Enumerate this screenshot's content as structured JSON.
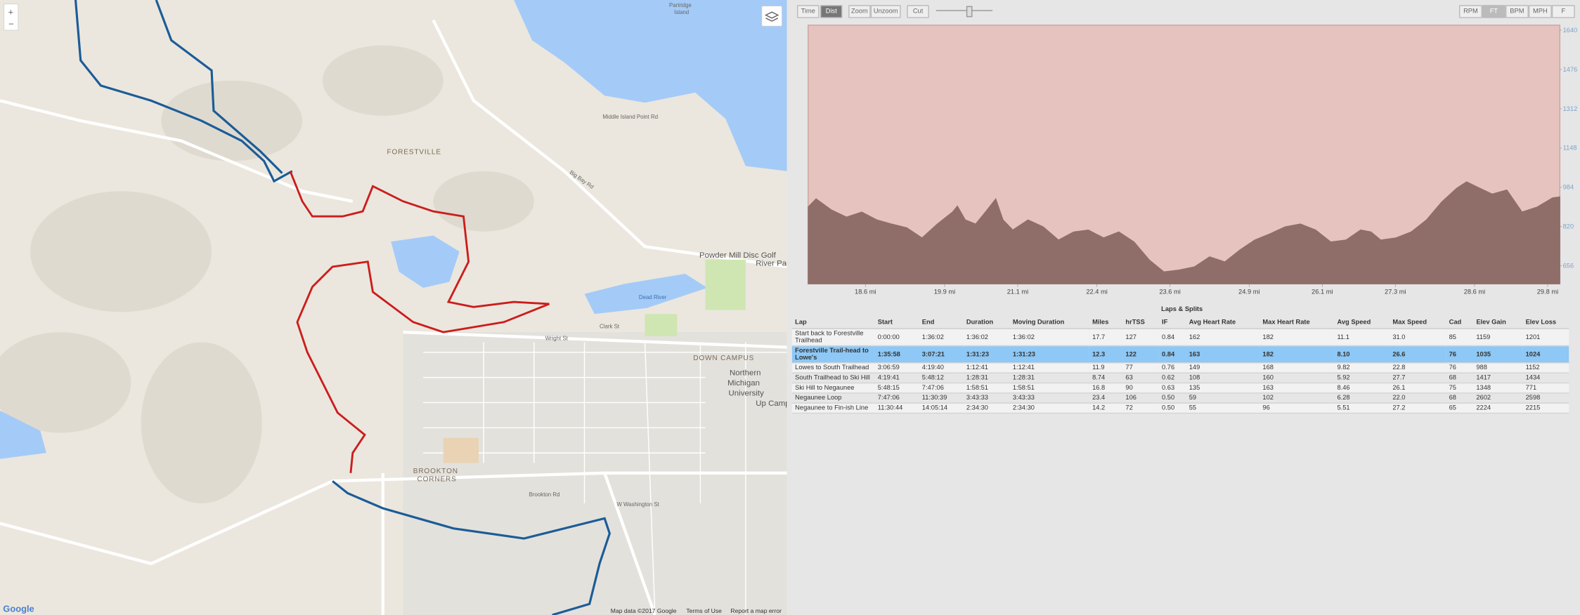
{
  "map": {
    "labels": [
      "Partridge",
      "Island",
      "FORESTVILLE",
      "Big Bay Rd",
      "Middle Island Point Rd",
      "Powder Mill Disc Golf",
      "River Park",
      "Dead River",
      "Clark St",
      "Wright St",
      "DOWN CAMPUS",
      "Northern",
      "Michigan",
      "University",
      "Up Campus",
      "BROOKTON",
      "CORNERS",
      "Brookton Rd",
      "W Washington St",
      "Map data ©2017 Google",
      "Terms of Use",
      "Report a map error",
      "Google"
    ]
  },
  "toolbar": {
    "left": [
      "Time",
      "Dist",
      "Zoom",
      "Unzoom",
      "Cut"
    ],
    "right": [
      "RPM",
      "FT",
      "BPM",
      "MPH",
      "F"
    ]
  },
  "chart_data": {
    "type": "area",
    "x": [
      17.66,
      17.79,
      18.04,
      18.29,
      18.54,
      18.79,
      19.03,
      19.28,
      19.53,
      19.78,
      20.03,
      20.11,
      20.24,
      20.41,
      20.57,
      20.74,
      20.86,
      21.02,
      21.27,
      21.52,
      21.77,
      22.02,
      22.26,
      22.51,
      22.76,
      23.01,
      23.26,
      23.5,
      23.75,
      24.0,
      24.25,
      24.5,
      24.75,
      24.99,
      25.24,
      25.49,
      25.74,
      25.99,
      26.24,
      26.49,
      26.73,
      26.9,
      27.06,
      27.31,
      27.56,
      27.81,
      28.06,
      28.31,
      28.47,
      28.64,
      28.89,
      29.13,
      29.38,
      29.63,
      29.88,
      30.0
    ],
    "series": [
      {
        "color": "#8f6e6a",
        "values": [
          902,
          936,
          890,
          860,
          881,
          848,
          831,
          815,
          773,
          831,
          881,
          906,
          848,
          831,
          881,
          936,
          848,
          806,
          848,
          819,
          764,
          798,
          806,
          773,
          798,
          756,
          681,
          631,
          639,
          652,
          694,
          673,
          723,
          764,
          790,
          819,
          831,
          806,
          756,
          764,
          806,
          798,
          764,
          773,
          798,
          848,
          923,
          981,
          1007,
          986,
          956,
          973,
          881,
          902,
          940,
          944
        ]
      }
    ],
    "xlim": [
      17.66,
      30.0
    ],
    "ylim": [
      581,
      1661
    ],
    "xticks": [
      {
        "value": 18.6,
        "label": "18.6 mi"
      },
      {
        "value": 19.9,
        "label": "19.9 mi"
      },
      {
        "value": 21.1,
        "label": "21.1 mi"
      },
      {
        "value": 22.4,
        "label": "22.4 mi"
      },
      {
        "value": 23.6,
        "label": "23.6 mi"
      },
      {
        "value": 24.9,
        "label": "24.9 mi"
      },
      {
        "value": 26.1,
        "label": "26.1 mi"
      },
      {
        "value": 27.3,
        "label": "27.3 mi"
      },
      {
        "value": 28.6,
        "label": "28.6 mi"
      },
      {
        "value": 29.8,
        "label": "29.8 mi"
      }
    ],
    "yticks": [
      656,
      820,
      984,
      1148,
      1312,
      1476,
      1640
    ]
  },
  "table": {
    "title": "Laps & Splits",
    "header": [
      "Lap",
      "Start",
      "End",
      "Duration",
      "Moving Duration",
      "Miles",
      "hrTSS",
      "IF",
      "Avg Heart Rate",
      "Max Heart Rate",
      "Avg Speed",
      "Max Speed",
      "Cad",
      "Elev Gain",
      "Elev Loss"
    ],
    "rows": [
      [
        "Start back to Forestville Trailhead",
        "0:00:00",
        "1:36:02",
        "1:36:02",
        "1:36:02",
        "17.7",
        "127",
        "0.84",
        "162",
        "182",
        "11.1",
        "31.0",
        "85",
        "1159",
        "1201"
      ],
      [
        "Forestville Trail-head to Lowe's",
        "1:35:58",
        "3:07:21",
        "1:31:23",
        "1:31:23",
        "12.3",
        "122",
        "0.84",
        "163",
        "182",
        "8.10",
        "26.6",
        "76",
        "1035",
        "1024"
      ],
      [
        "Lowes to South Trailhead",
        "3:06:59",
        "4:19:40",
        "1:12:41",
        "1:12:41",
        "11.9",
        "77",
        "0.76",
        "149",
        "168",
        "9.82",
        "22.8",
        "76",
        "988",
        "1152"
      ],
      [
        "South Trailhead to Ski Hill",
        "4:19:41",
        "5:48:12",
        "1:28:31",
        "1:28:31",
        "8.74",
        "63",
        "0.62",
        "108",
        "160",
        "5.92",
        "27.7",
        "68",
        "1417",
        "1434"
      ],
      [
        "Ski Hill to Negaunee",
        "5:48:15",
        "7:47:06",
        "1:58:51",
        "1:58:51",
        "16.8",
        "90",
        "0.63",
        "135",
        "163",
        "8.46",
        "26.1",
        "75",
        "1348",
        "771"
      ],
      [
        "Negaunee Loop",
        "7:47:06",
        "11:30:39",
        "3:43:33",
        "3:43:33",
        "23.4",
        "106",
        "0.50",
        "59",
        "102",
        "6.28",
        "22.0",
        "68",
        "2602",
        "2598"
      ],
      [
        "Negaunee to Fin-ish Line",
        "11:30:44",
        "14:05:14",
        "2:34:30",
        "2:34:30",
        "14.2",
        "72",
        "0.50",
        "55",
        "96",
        "5.51",
        "27.2",
        "65",
        "2224",
        "2215"
      ]
    ]
  }
}
